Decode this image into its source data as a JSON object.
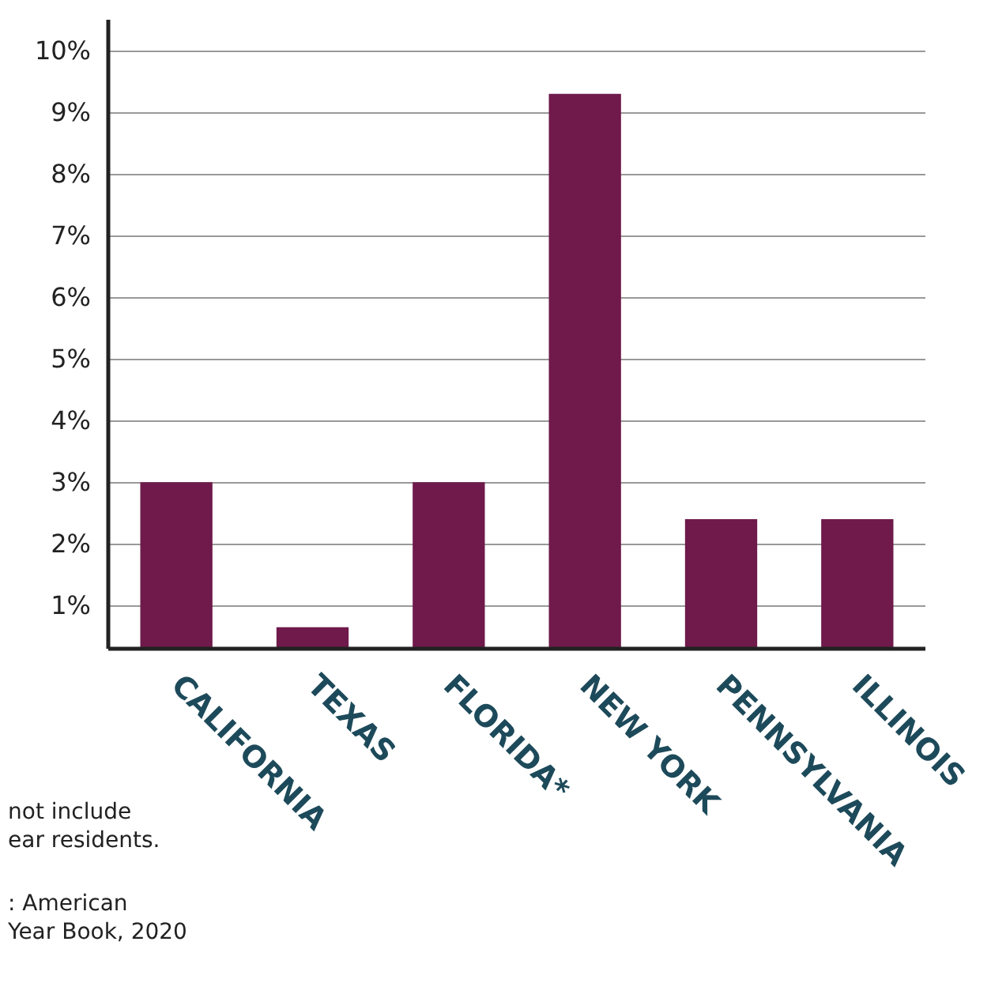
{
  "chart_data": {
    "type": "bar",
    "categories": [
      "CALIFORNIA",
      "TEXAS",
      "FLORIDA*",
      "NEW YORK",
      "PENNSYLVANIA",
      "ILLINOIS"
    ],
    "values": [
      3.0,
      0.65,
      3.0,
      9.3,
      2.4,
      2.4
    ],
    "color": "#6f1a4b",
    "ylim": [
      0.3,
      10.5
    ],
    "yticks": [
      {
        "value": 1,
        "label": "1%"
      },
      {
        "value": 2,
        "label": "2%"
      },
      {
        "value": 3,
        "label": "3%"
      },
      {
        "value": 4,
        "label": "4%"
      },
      {
        "value": 5,
        "label": "5%"
      },
      {
        "value": 6,
        "label": "6%"
      },
      {
        "value": 7,
        "label": "7%"
      },
      {
        "value": 8,
        "label": "8%"
      },
      {
        "value": 9,
        "label": "9%"
      },
      {
        "value": 10,
        "label": "10%"
      }
    ],
    "grid": "y",
    "annotations": [
      "not include\near residents.",
      ": American\nYear Book, 2020"
    ]
  }
}
